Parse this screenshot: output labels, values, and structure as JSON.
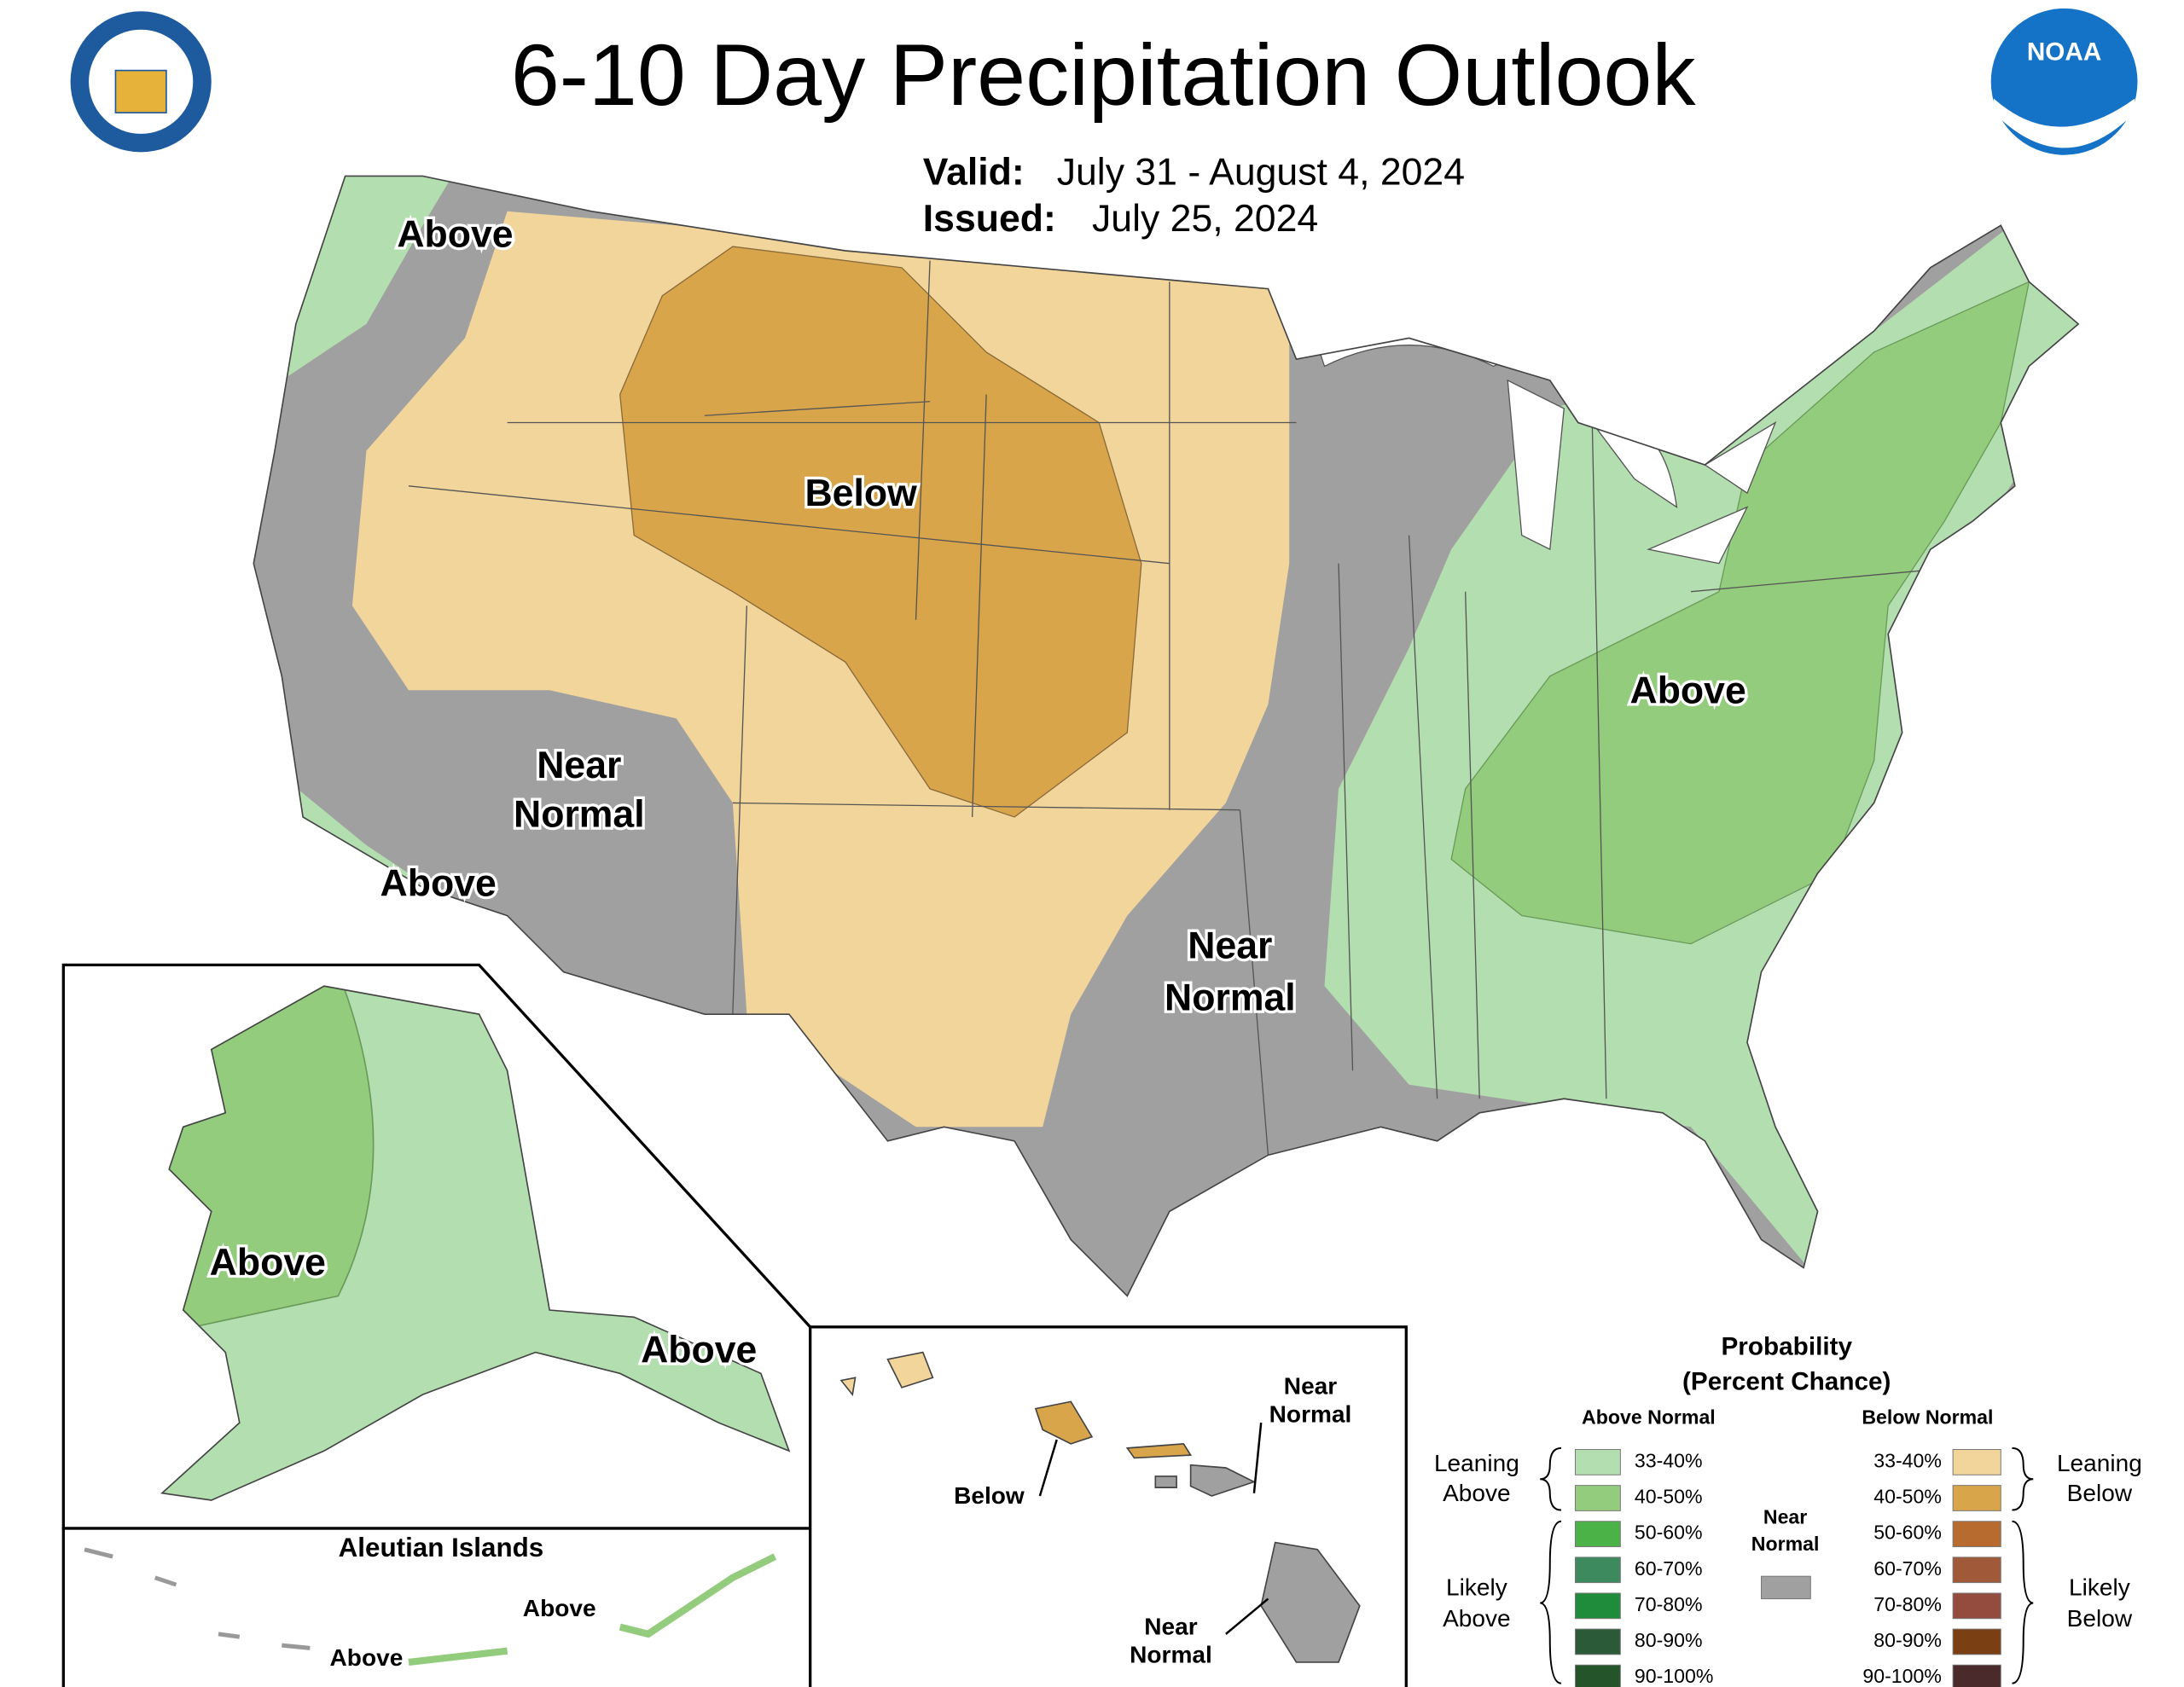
{
  "header": {
    "title": "6-10 Day Precipitation Outlook",
    "valid_label": "Valid:",
    "valid_dates": "July 31 - August 4, 2024",
    "issued_label": "Issued:",
    "issued_date": "July 25, 2024",
    "logo_text": "NOAA"
  },
  "contiguous_us": {
    "labels": [
      {
        "lines": [
          "Above"
        ]
      },
      {
        "lines": [
          "Below"
        ]
      },
      {
        "lines": [
          "Above"
        ]
      },
      {
        "lines": [
          "Near",
          "Normal"
        ]
      },
      {
        "lines": [
          "Above"
        ]
      },
      {
        "lines": [
          "Near",
          "Normal"
        ]
      }
    ]
  },
  "alaska": {
    "labels": [
      "Above",
      "Above"
    ]
  },
  "aleutians": {
    "title": "Aleutian Islands",
    "labels": [
      "Above",
      "Above"
    ]
  },
  "hawaii": {
    "labels": [
      {
        "lines": [
          "Near",
          "Normal"
        ]
      },
      {
        "lines": [
          "Below"
        ]
      },
      {
        "lines": [
          "Near",
          "Normal"
        ]
      }
    ]
  },
  "legend": {
    "title": [
      "Probability",
      "(Percent Chance)"
    ],
    "above": {
      "heading": "Above Normal",
      "leaning": [
        "Leaning",
        "Above"
      ],
      "likely": [
        "Likely",
        "Above"
      ],
      "items": [
        {
          "range": "33-40%",
          "color": "#b3deaf"
        },
        {
          "range": "40-50%",
          "color": "#93cc7c"
        },
        {
          "range": "50-60%",
          "color": "#4bb247"
        },
        {
          "range": "60-70%",
          "color": "#3d8a5f"
        },
        {
          "range": "70-80%",
          "color": "#1f8c3c"
        },
        {
          "range": "80-90%",
          "color": "#2a5a38"
        },
        {
          "range": "90-100%",
          "color": "#24542a"
        }
      ]
    },
    "below": {
      "heading": "Below Normal",
      "leaning": [
        "Leaning",
        "Below"
      ],
      "likely": [
        "Likely",
        "Below"
      ],
      "items": [
        {
          "range": "33-40%",
          "color": "#f2d59a"
        },
        {
          "range": "40-50%",
          "color": "#d9a54b"
        },
        {
          "range": "50-60%",
          "color": "#b86b2e"
        },
        {
          "range": "60-70%",
          "color": "#a05a3a"
        },
        {
          "range": "70-80%",
          "color": "#944c3e"
        },
        {
          "range": "80-90%",
          "color": "#7a4014"
        },
        {
          "range": "90-100%",
          "color": "#4a2a2a"
        }
      ]
    },
    "near_normal": {
      "label": [
        "Near",
        "Normal"
      ],
      "color": "#a0a0a0"
    }
  }
}
